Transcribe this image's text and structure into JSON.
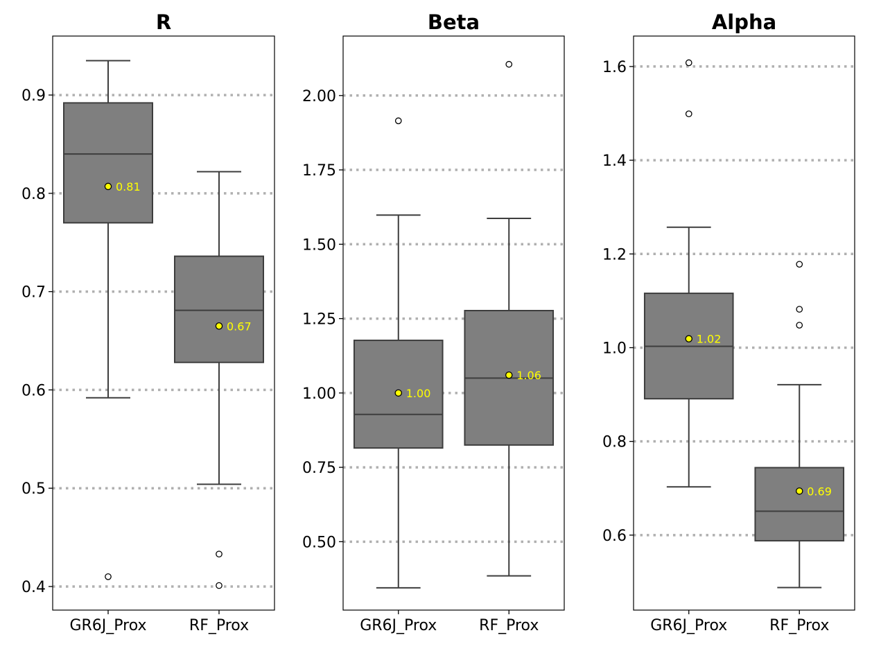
{
  "chart_data": [
    {
      "type": "box",
      "title": "R",
      "ylim": [
        0.376,
        0.96
      ],
      "yticks": [
        0.4,
        0.5,
        0.6,
        0.7,
        0.8,
        0.9
      ],
      "ytick_labels": [
        "0.4",
        "0.5",
        "0.6",
        "0.7",
        "0.8",
        "0.9"
      ],
      "grid": "horizontal dotted",
      "categories": [
        "GR6J_Prox",
        "RF_Prox"
      ],
      "boxes": [
        {
          "q1": 0.77,
          "median": 0.84,
          "q3": 0.892,
          "whisker_low": 0.592,
          "whisker_high": 0.935,
          "outliers": [
            0.41
          ],
          "mean": 0.807,
          "mean_label": "0.81"
        },
        {
          "q1": 0.628,
          "median": 0.681,
          "q3": 0.736,
          "whisker_low": 0.504,
          "whisker_high": 0.822,
          "outliers": [
            0.433,
            0.401
          ],
          "mean": 0.665,
          "mean_label": "0.67"
        }
      ]
    },
    {
      "type": "box",
      "title": "Beta",
      "ylim": [
        0.27,
        2.2
      ],
      "yticks": [
        0.5,
        0.75,
        1.0,
        1.25,
        1.5,
        1.75,
        2.0
      ],
      "ytick_labels": [
        "0.50",
        "0.75",
        "1.00",
        "1.25",
        "1.50",
        "1.75",
        "2.00"
      ],
      "grid": "horizontal dotted",
      "categories": [
        "GR6J_Prox",
        "RF_Prox"
      ],
      "boxes": [
        {
          "q1": 0.815,
          "median": 0.928,
          "q3": 1.177,
          "whisker_low": 0.345,
          "whisker_high": 1.598,
          "outliers": [
            1.915
          ],
          "mean": 1.0,
          "mean_label": "1.00"
        },
        {
          "q1": 0.825,
          "median": 1.05,
          "q3": 1.277,
          "whisker_low": 0.385,
          "whisker_high": 1.587,
          "outliers": [
            2.105
          ],
          "mean": 1.06,
          "mean_label": "1.06"
        }
      ]
    },
    {
      "type": "box",
      "title": "Alpha",
      "ylim": [
        0.44,
        1.665
      ],
      "yticks": [
        0.6,
        0.8,
        1.0,
        1.2,
        1.4,
        1.6
      ],
      "ytick_labels": [
        "0.6",
        "0.8",
        "1.0",
        "1.2",
        "1.4",
        "1.6"
      ],
      "grid": "horizontal dotted",
      "categories": [
        "GR6J_Prox",
        "RF_Prox"
      ],
      "boxes": [
        {
          "q1": 0.891,
          "median": 1.003,
          "q3": 1.116,
          "whisker_low": 0.703,
          "whisker_high": 1.257,
          "outliers": [
            1.608,
            1.499
          ],
          "mean": 1.019,
          "mean_label": "1.02"
        },
        {
          "q1": 0.588,
          "median": 0.651,
          "q3": 0.744,
          "whisker_low": 0.488,
          "whisker_high": 0.921,
          "outliers": [
            1.178,
            1.082,
            1.048
          ],
          "mean": 0.694,
          "mean_label": "0.69"
        }
      ]
    }
  ]
}
